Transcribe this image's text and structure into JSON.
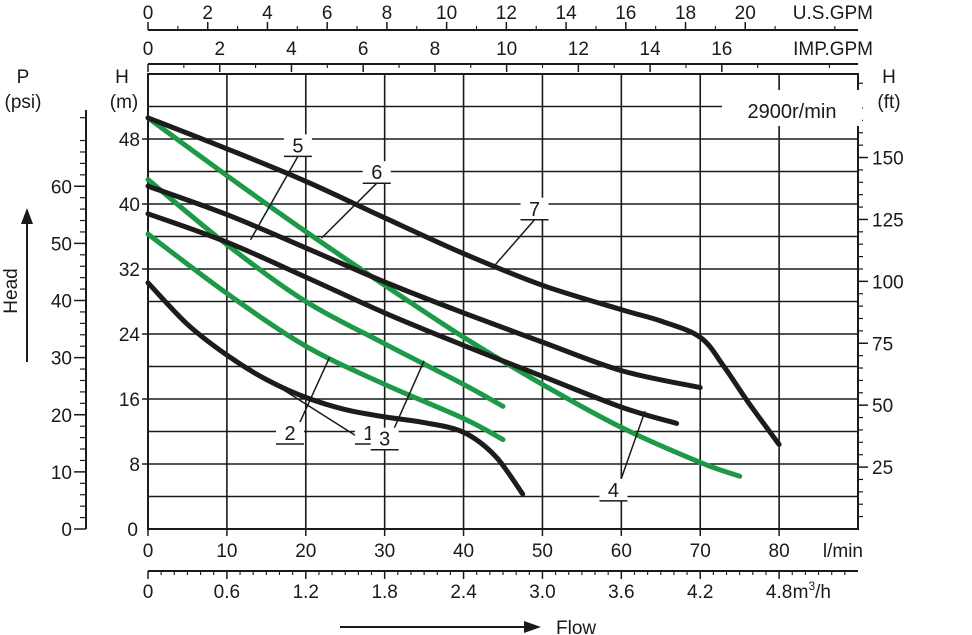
{
  "chart_data": {
    "type": "line",
    "speed_label": "2900r/min",
    "x_axis": {
      "unit": "l/min",
      "range": [
        0,
        90
      ],
      "ticks": [
        0,
        10,
        20,
        30,
        40,
        50,
        60,
        70,
        80
      ]
    },
    "x_axis_m3h": {
      "unit": "m",
      "unit_sup": "3",
      "unit_tail": "/h",
      "ticks": [
        "0",
        "0.6",
        "1.2",
        "1.8",
        "2.4",
        "3.0",
        "3.6",
        "4.2",
        "4.8"
      ]
    },
    "x_axis_usgpm": {
      "unit": "U.S.GPM",
      "ticks": [
        "0",
        "2",
        "4",
        "6",
        "8",
        "10",
        "12",
        "14",
        "16",
        "18",
        "20"
      ]
    },
    "x_axis_impgpm": {
      "unit": "IMP.GPM",
      "ticks": [
        "0",
        "2",
        "4",
        "6",
        "8",
        "10",
        "12",
        "14",
        "16"
      ]
    },
    "flow_label": "Flow",
    "y_axis_m": {
      "label_top": "H",
      "label_bottom": "(m)",
      "range": [
        0,
        56
      ],
      "ticks": [
        8,
        16,
        24,
        32,
        40,
        48
      ],
      "extra_gridlines": [
        4,
        12,
        20,
        28,
        36,
        44,
        52
      ]
    },
    "y_axis_psi": {
      "label_top": "P",
      "label_bottom": "(psi)",
      "ticks": [
        "0",
        "10",
        "20",
        "30",
        "40",
        "50",
        "60"
      ]
    },
    "y_axis_ft": {
      "label_top": "H",
      "label_bottom": "(ft)",
      "ticks": [
        "25",
        "50",
        "75",
        "100",
        "125",
        "150"
      ]
    },
    "head_label": "Head",
    "grid": true,
    "series": [
      {
        "name": "1",
        "color": "#1c1c1c",
        "x": [
          0,
          5,
          10,
          15,
          20,
          25,
          30,
          35,
          40,
          44,
          47.5
        ],
        "y": [
          30.3,
          25.2,
          21.4,
          18.4,
          16.2,
          14.7,
          13.8,
          13.1,
          11.9,
          9.0,
          4.3
        ]
      },
      {
        "name": "2",
        "color": "#1c9a46",
        "x": [
          0,
          10,
          20,
          30,
          40,
          45
        ],
        "y": [
          36.3,
          29.0,
          22.5,
          17.8,
          13.6,
          11.0
        ]
      },
      {
        "name": "3",
        "color": "#1c9a46",
        "x": [
          0,
          10,
          20,
          30,
          40,
          45
        ],
        "y": [
          43.0,
          35.0,
          28.0,
          22.8,
          17.8,
          15.1
        ]
      },
      {
        "name": "4",
        "color": "#1c9a46",
        "x": [
          0,
          10,
          20,
          30,
          40,
          50,
          60,
          70,
          75
        ],
        "y": [
          50.6,
          43.5,
          36.6,
          30.0,
          23.6,
          17.8,
          12.5,
          8.2,
          6.5
        ]
      },
      {
        "name": "5",
        "color": "#1c1c1c",
        "x": [
          0,
          10,
          20,
          30,
          40,
          50,
          60,
          67
        ],
        "y": [
          38.8,
          35.3,
          31.0,
          26.6,
          22.6,
          18.8,
          15.0,
          13.0
        ]
      },
      {
        "name": "6",
        "color": "#1c1c1c",
        "x": [
          0,
          10,
          20,
          30,
          40,
          50,
          60,
          70
        ],
        "y": [
          42.2,
          38.7,
          34.6,
          30.4,
          26.6,
          23.0,
          19.5,
          17.4
        ]
      },
      {
        "name": "7",
        "color": "#1c1c1c",
        "x": [
          0,
          10,
          20,
          30,
          40,
          50,
          60,
          65,
          70,
          73,
          76,
          80
        ],
        "y": [
          50.6,
          46.8,
          42.8,
          38.3,
          33.9,
          30.0,
          27.0,
          25.6,
          23.6,
          20.0,
          15.7,
          10.4
        ]
      }
    ]
  }
}
